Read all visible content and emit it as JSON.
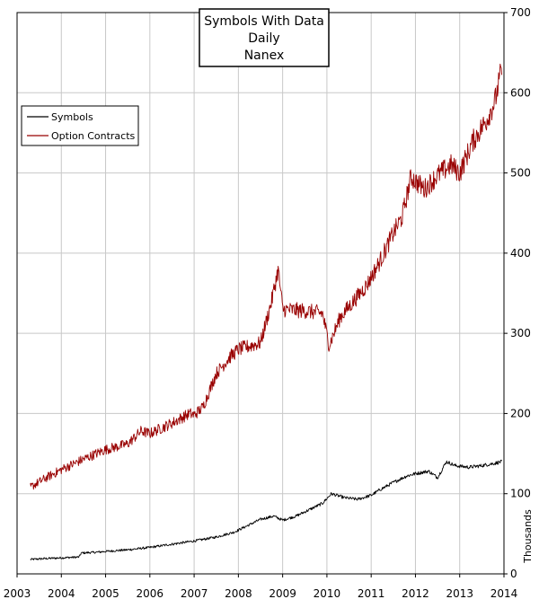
{
  "chart_data": {
    "type": "line",
    "title_lines": [
      "Symbols With Data",
      "Daily",
      "Nanex"
    ],
    "xlabel": "",
    "ylabel": "Thousands",
    "xlim": [
      2003,
      2014
    ],
    "ylim": [
      0,
      700
    ],
    "x_ticks": [
      "2003",
      "2004",
      "2005",
      "2006",
      "2007",
      "2008",
      "2009",
      "2010",
      "2011",
      "2012",
      "2013",
      "2014"
    ],
    "y_ticks": [
      "0",
      "100",
      "200",
      "300",
      "400",
      "500",
      "600",
      "700"
    ],
    "grid": true,
    "legend_position": "top-left",
    "series": [
      {
        "name": "Symbols",
        "color": "#000000",
        "x": [
          2003.3,
          2003.6,
          2004.0,
          2004.4,
          2004.45,
          2004.8,
          2005.0,
          2005.5,
          2006.0,
          2006.5,
          2007.0,
          2007.5,
          2007.9,
          2008.2,
          2008.5,
          2008.8,
          2009.0,
          2009.3,
          2009.6,
          2009.9,
          2010.1,
          2010.4,
          2010.7,
          2011.0,
          2011.2,
          2011.5,
          2011.8,
          2012.0,
          2012.3,
          2012.5,
          2012.7,
          2012.9,
          2013.2,
          2013.5,
          2013.8,
          2013.95
        ],
        "values": [
          18,
          19,
          20,
          21,
          26,
          27,
          28,
          30,
          33,
          37,
          41,
          46,
          52,
          60,
          68,
          72,
          67,
          72,
          80,
          88,
          100,
          95,
          93,
          98,
          105,
          114,
          122,
          125,
          128,
          120,
          140,
          135,
          133,
          135,
          138,
          140
        ],
        "noise": 3
      },
      {
        "name": "Option Contracts",
        "color": "#990000",
        "x": [
          2003.3,
          2003.6,
          2004.0,
          2004.5,
          2005.0,
          2005.5,
          2005.8,
          2006.0,
          2006.5,
          2006.9,
          2007.0,
          2007.2,
          2007.5,
          2007.8,
          2008.0,
          2008.5,
          2008.75,
          2008.9,
          2009.0,
          2009.5,
          2009.9,
          2010.05,
          2010.3,
          2010.6,
          2010.9,
          2011.2,
          2011.5,
          2011.7,
          2011.9,
          2012.0,
          2012.2,
          2012.5,
          2012.8,
          2013.0,
          2013.3,
          2013.6,
          2013.8,
          2013.95
        ],
        "values": [
          108,
          118,
          130,
          143,
          155,
          162,
          178,
          175,
          188,
          200,
          198,
          208,
          250,
          270,
          280,
          288,
          340,
          380,
          330,
          328,
          325,
          285,
          320,
          340,
          360,
          390,
          425,
          445,
          495,
          490,
          480,
          497,
          510,
          500,
          540,
          565,
          590,
          630
        ],
        "noise": 8
      }
    ]
  }
}
